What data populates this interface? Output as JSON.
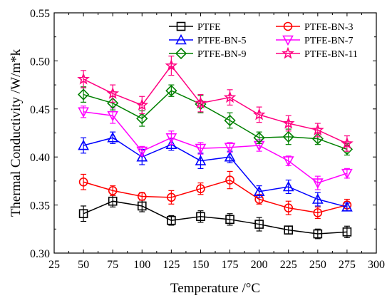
{
  "chart_data": {
    "type": "line",
    "xlabel": "Temperature /°C",
    "ylabel": "Thermal Conductivity /W/m*k",
    "xlim": [
      25,
      300
    ],
    "ylim": [
      0.3,
      0.55
    ],
    "x_ticks": [
      "25",
      "50",
      "75",
      "100",
      "125",
      "150",
      "175",
      "200",
      "225",
      "250",
      "275",
      "300"
    ],
    "y_ticks": [
      "0.30",
      "0.35",
      "0.40",
      "0.45",
      "0.50",
      "0.55"
    ],
    "x_tick_values": [
      25,
      50,
      75,
      100,
      125,
      150,
      175,
      200,
      225,
      250,
      275,
      300
    ],
    "y_tick_values": [
      0.3,
      0.35,
      0.4,
      0.45,
      0.5,
      0.55
    ],
    "grid": false,
    "legend": "top-right",
    "x": [
      50,
      75,
      100,
      125,
      150,
      175,
      200,
      225,
      250,
      275
    ],
    "series": [
      {
        "name": "PTFE",
        "color": "#000000",
        "marker": "square",
        "values": [
          0.341,
          0.354,
          0.349,
          0.334,
          0.338,
          0.335,
          0.33,
          0.324,
          0.32,
          0.322
        ],
        "errors": [
          0.008,
          0.006,
          0.006,
          0.005,
          0.006,
          0.006,
          0.007,
          0.004,
          0.005,
          0.006
        ]
      },
      {
        "name": "PTFE-BN-3",
        "color": "#ff0000",
        "marker": "circle",
        "values": [
          0.374,
          0.365,
          0.359,
          0.358,
          0.367,
          0.376,
          0.356,
          0.347,
          0.342,
          0.35
        ],
        "errors": [
          0.008,
          0.005,
          0.004,
          0.007,
          0.006,
          0.009,
          0.005,
          0.007,
          0.006,
          0.006
        ]
      },
      {
        "name": "PTFE-BN-5",
        "color": "#0000ff",
        "marker": "triangle-up",
        "values": [
          0.412,
          0.42,
          0.4,
          0.413,
          0.396,
          0.4,
          0.364,
          0.369,
          0.356,
          0.348
        ],
        "errors": [
          0.008,
          0.006,
          0.008,
          0.006,
          0.008,
          0.006,
          0.006,
          0.007,
          0.007,
          0.004
        ]
      },
      {
        "name": "PTFE-BN-7",
        "color": "#ff00ff",
        "marker": "triangle-down",
        "values": [
          0.447,
          0.443,
          0.406,
          0.42,
          0.409,
          0.41,
          0.412,
          0.396,
          0.373,
          0.383
        ],
        "errors": [
          0.006,
          0.008,
          0.005,
          0.007,
          0.006,
          0.005,
          0.006,
          0.005,
          0.007,
          0.005
        ]
      },
      {
        "name": "PTFE-BN-9",
        "color": "#008000",
        "marker": "diamond",
        "values": [
          0.465,
          0.456,
          0.44,
          0.469,
          0.455,
          0.438,
          0.42,
          0.421,
          0.419,
          0.408
        ],
        "errors": [
          0.008,
          0.007,
          0.008,
          0.006,
          0.009,
          0.008,
          0.006,
          0.008,
          0.006,
          0.006
        ]
      },
      {
        "name": "PTFE-BN-11",
        "color": "#ff0080",
        "marker": "star",
        "values": [
          0.481,
          0.466,
          0.454,
          0.495,
          0.456,
          0.462,
          0.444,
          0.435,
          0.428,
          0.414
        ],
        "errors": [
          0.009,
          0.009,
          0.009,
          0.01,
          0.009,
          0.008,
          0.008,
          0.008,
          0.007,
          0.008
        ]
      }
    ]
  }
}
